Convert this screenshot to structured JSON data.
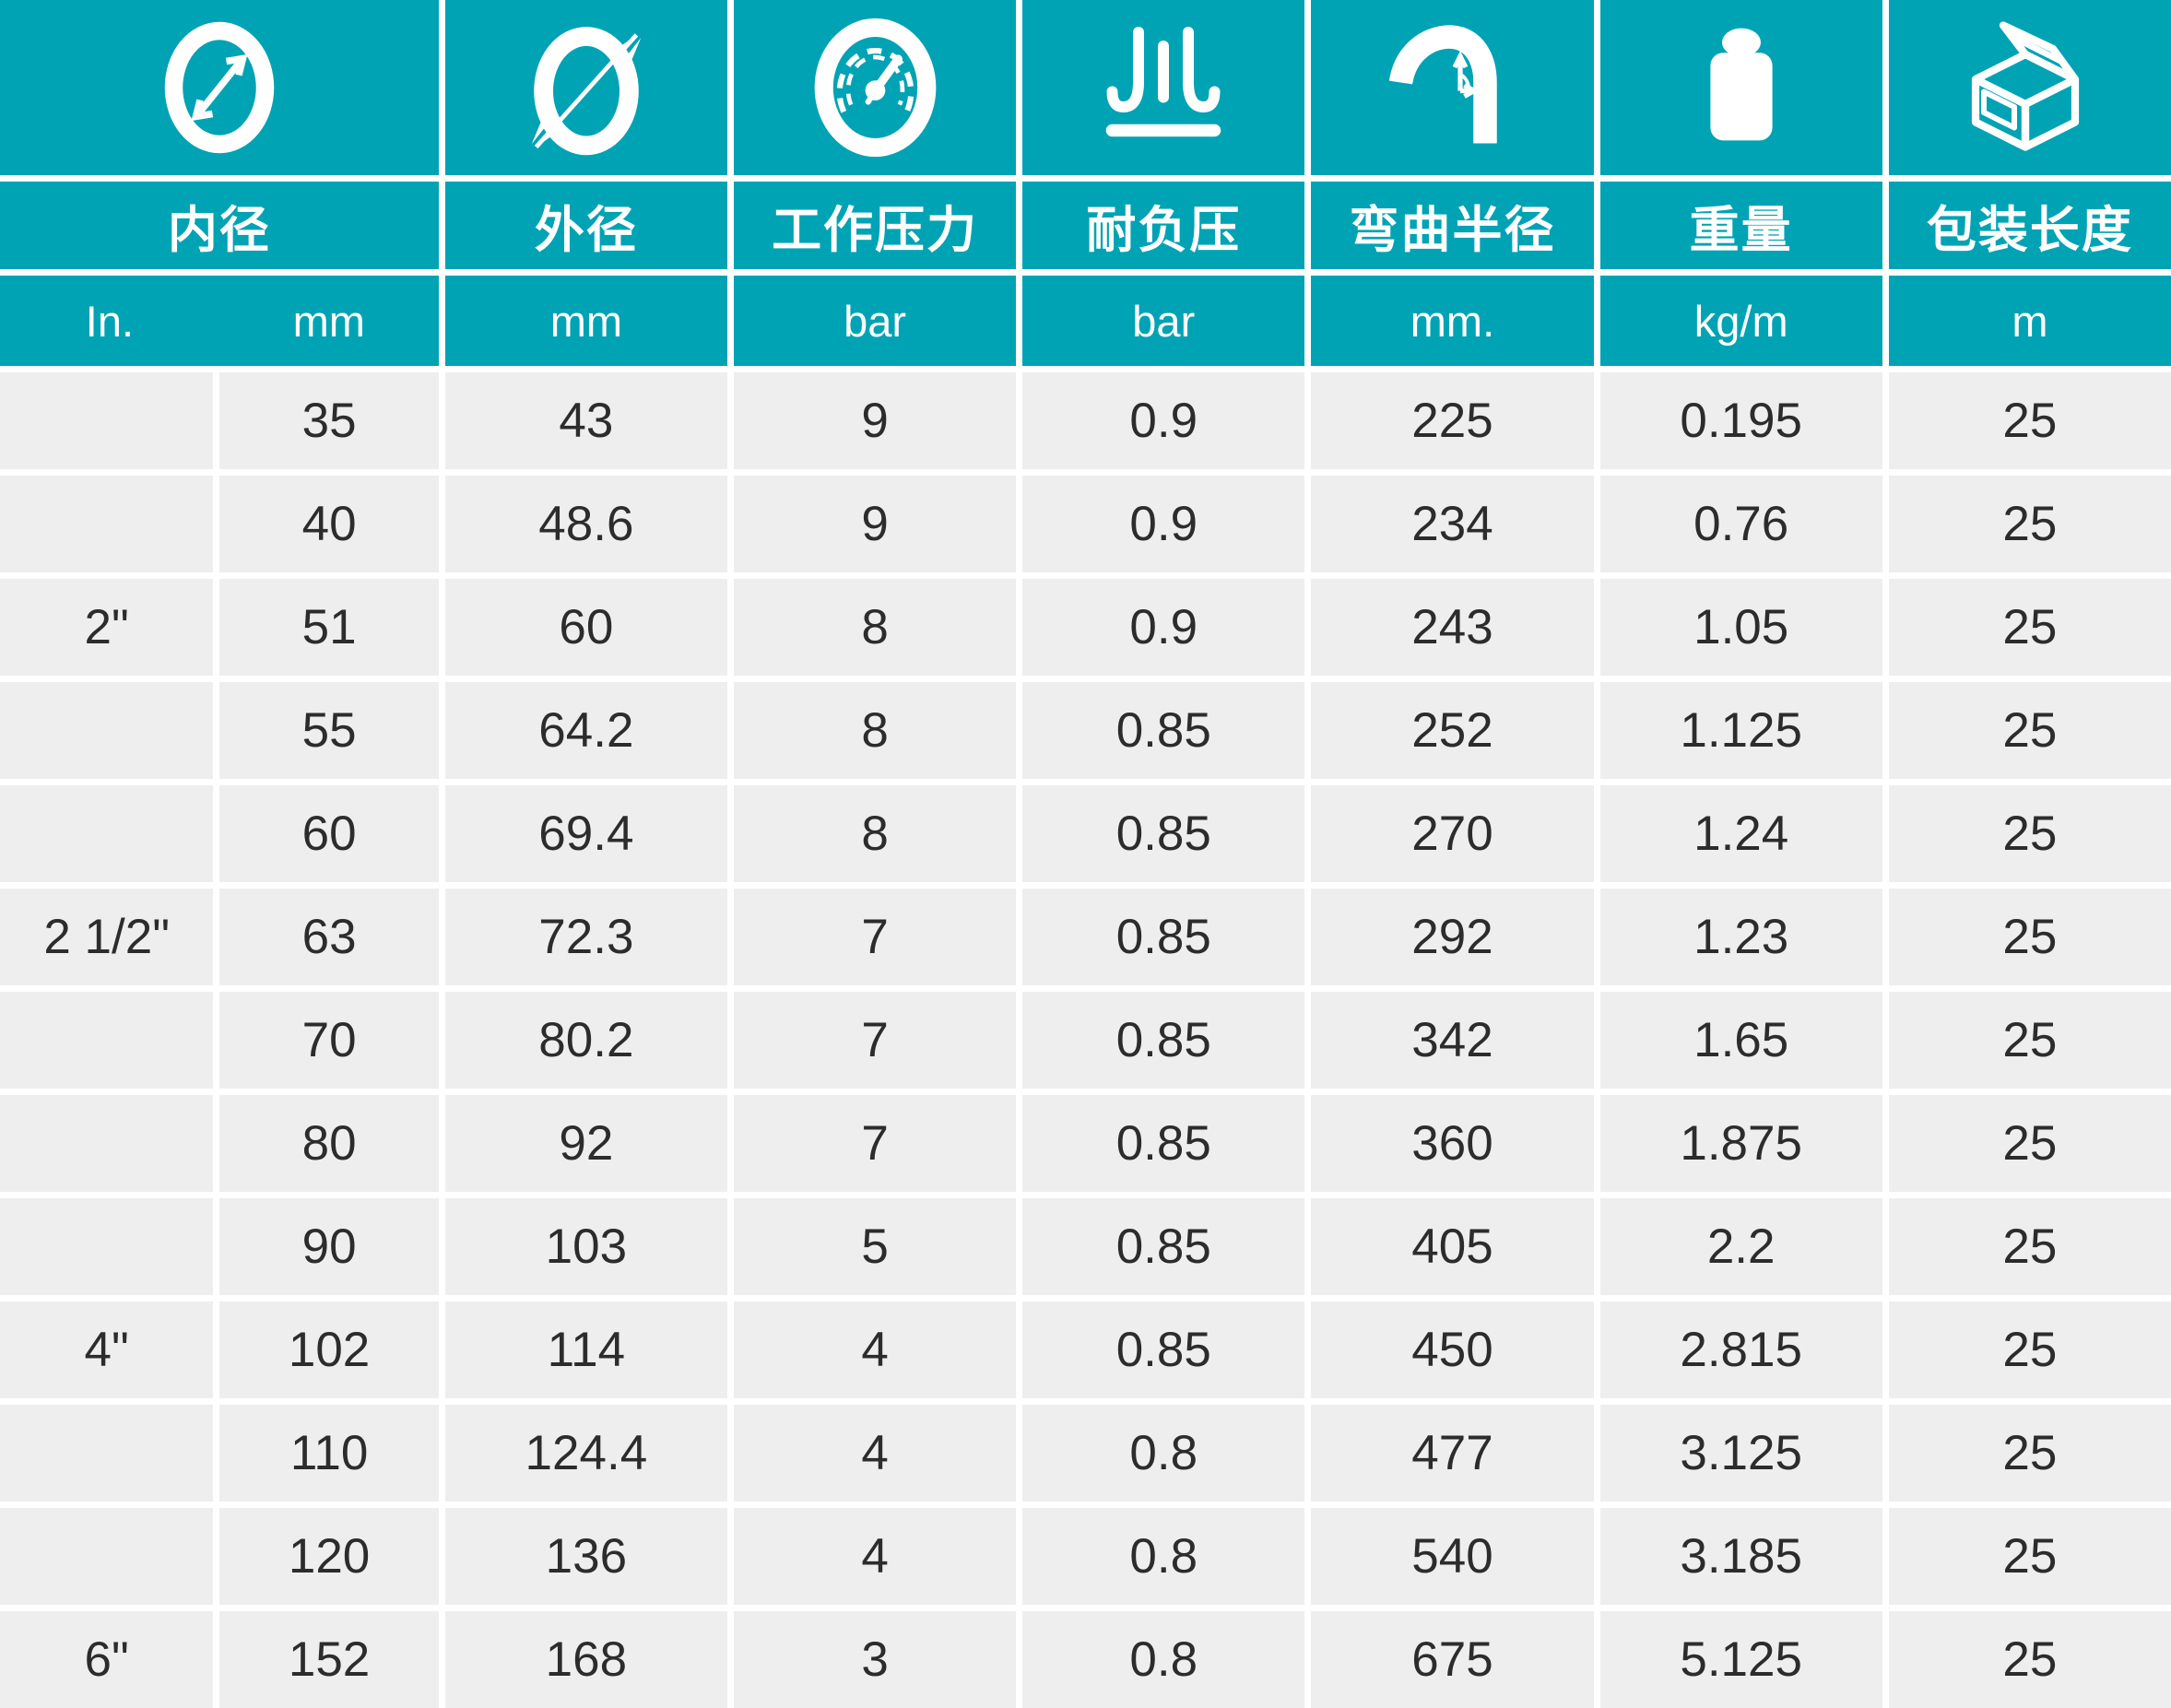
{
  "theme": {
    "teal": "#00a3b4",
    "row_bg": "#eeeeee",
    "gap_color": "#ffffff",
    "header_text": "#ffffff",
    "body_text": "#2c2c2c"
  },
  "header": {
    "columns": [
      {
        "label": "内径",
        "icon": "inner-diameter-icon",
        "units": [
          "In.",
          "mm"
        ]
      },
      {
        "label": "外径",
        "icon": "outer-diameter-icon",
        "unit": "mm"
      },
      {
        "label": "工作压力",
        "icon": "pressure-gauge-icon",
        "unit": "bar"
      },
      {
        "label": "耐负压",
        "icon": "vacuum-resistance-icon",
        "unit": "bar"
      },
      {
        "label": "弯曲半径",
        "icon": "bend-radius-icon",
        "unit": "mm."
      },
      {
        "label": "重量",
        "icon": "weight-icon",
        "unit": "kg/m"
      },
      {
        "label": "包装长度",
        "icon": "package-box-icon",
        "unit": "m"
      }
    ]
  },
  "rows": [
    {
      "inch": "",
      "id_mm": "35",
      "od_mm": "43",
      "wp_bar": "9",
      "vac_bar": "0.9",
      "bend_mm": "225",
      "weight_kgm": "0.195",
      "length_m": "25"
    },
    {
      "inch": "",
      "id_mm": "40",
      "od_mm": "48.6",
      "wp_bar": "9",
      "vac_bar": "0.9",
      "bend_mm": "234",
      "weight_kgm": "0.76",
      "length_m": "25"
    },
    {
      "inch": "2\"",
      "id_mm": "51",
      "od_mm": "60",
      "wp_bar": "8",
      "vac_bar": "0.9",
      "bend_mm": "243",
      "weight_kgm": "1.05",
      "length_m": "25"
    },
    {
      "inch": "",
      "id_mm": "55",
      "od_mm": "64.2",
      "wp_bar": "8",
      "vac_bar": "0.85",
      "bend_mm": "252",
      "weight_kgm": "1.125",
      "length_m": "25"
    },
    {
      "inch": "",
      "id_mm": "60",
      "od_mm": "69.4",
      "wp_bar": "8",
      "vac_bar": "0.85",
      "bend_mm": "270",
      "weight_kgm": "1.24",
      "length_m": "25"
    },
    {
      "inch": "2 1/2\"",
      "id_mm": "63",
      "od_mm": "72.3",
      "wp_bar": "7",
      "vac_bar": "0.85",
      "bend_mm": "292",
      "weight_kgm": "1.23",
      "length_m": "25"
    },
    {
      "inch": "",
      "id_mm": "70",
      "od_mm": "80.2",
      "wp_bar": "7",
      "vac_bar": "0.85",
      "bend_mm": "342",
      "weight_kgm": "1.65",
      "length_m": "25"
    },
    {
      "inch": "",
      "id_mm": "80",
      "od_mm": "92",
      "wp_bar": "7",
      "vac_bar": "0.85",
      "bend_mm": "360",
      "weight_kgm": "1.875",
      "length_m": "25"
    },
    {
      "inch": "",
      "id_mm": "90",
      "od_mm": "103",
      "wp_bar": "5",
      "vac_bar": "0.85",
      "bend_mm": "405",
      "weight_kgm": "2.2",
      "length_m": "25"
    },
    {
      "inch": "4\"",
      "id_mm": "102",
      "od_mm": "114",
      "wp_bar": "4",
      "vac_bar": "0.85",
      "bend_mm": "450",
      "weight_kgm": "2.815",
      "length_m": "25"
    },
    {
      "inch": "",
      "id_mm": "110",
      "od_mm": "124.4",
      "wp_bar": "4",
      "vac_bar": "0.8",
      "bend_mm": "477",
      "weight_kgm": "3.125",
      "length_m": "25"
    },
    {
      "inch": "",
      "id_mm": "120",
      "od_mm": "136",
      "wp_bar": "4",
      "vac_bar": "0.8",
      "bend_mm": "540",
      "weight_kgm": "3.185",
      "length_m": "25"
    },
    {
      "inch": "6\"",
      "id_mm": "152",
      "od_mm": "168",
      "wp_bar": "3",
      "vac_bar": "0.8",
      "bend_mm": "675",
      "weight_kgm": "5.125",
      "length_m": "25"
    }
  ]
}
